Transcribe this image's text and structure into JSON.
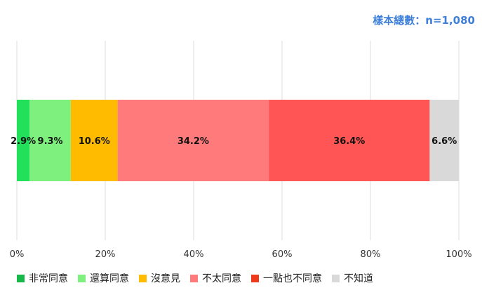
{
  "sample_note": "樣本總數：n=1,080",
  "chart_data": {
    "type": "bar",
    "orientation": "horizontal-stacked-100",
    "xlim": [
      0,
      100
    ],
    "ticks": [
      "0%",
      "20%",
      "40%",
      "60%",
      "80%",
      "100%"
    ],
    "tick_values": [
      0,
      20,
      40,
      60,
      80,
      100
    ],
    "grid": true,
    "legend_position": "bottom",
    "series": [
      {
        "name": "非常同意",
        "value": 2.9,
        "label": "2.9%",
        "color": "#22e05a",
        "legend_color": "#16b84a"
      },
      {
        "name": "還算同意",
        "value": 9.3,
        "label": "9.3%",
        "color": "#7ef07e",
        "legend_color": "#7ef07e"
      },
      {
        "name": "沒意見",
        "value": 10.6,
        "label": "10.6%",
        "color": "#ffbb00",
        "legend_color": "#ffbb00"
      },
      {
        "name": "不太同意",
        "value": 34.2,
        "label": "34.2%",
        "color": "#ff7b7b",
        "legend_color": "#ff7b7b"
      },
      {
        "name": "一點也不同意",
        "value": 36.4,
        "label": "36.4%",
        "color": "#ff5555",
        "legend_color": "#ee3a1a"
      },
      {
        "name": "不知道",
        "value": 6.6,
        "label": "6.6%",
        "color": "#d9d9d9",
        "legend_color": "#d9d9d9"
      }
    ]
  }
}
